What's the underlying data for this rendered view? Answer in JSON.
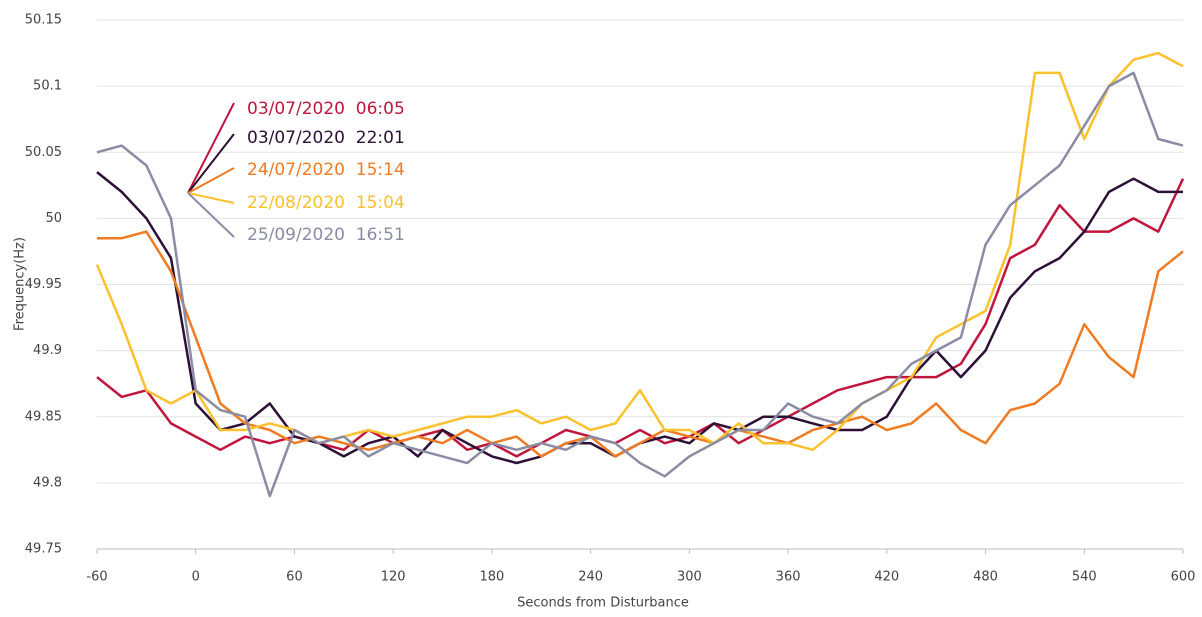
{
  "chart_data": {
    "type": "line",
    "xlabel": "Seconds from Disturbance",
    "ylabel": "Frequency(Hz)",
    "x": [
      -60,
      -45,
      -30,
      -15,
      0,
      15,
      30,
      45,
      60,
      75,
      90,
      105,
      120,
      135,
      150,
      165,
      180,
      195,
      210,
      225,
      240,
      255,
      270,
      285,
      300,
      315,
      330,
      345,
      360,
      375,
      390,
      405,
      420,
      435,
      450,
      465,
      480,
      495,
      510,
      525,
      540,
      555,
      570,
      585,
      600
    ],
    "series": [
      {
        "name": "03/07/2020  06:05",
        "color": "#c0163d",
        "values": [
          49.88,
          49.865,
          49.87,
          49.845,
          49.835,
          49.825,
          49.835,
          49.83,
          49.835,
          49.83,
          49.825,
          49.84,
          49.83,
          49.835,
          49.84,
          49.825,
          49.83,
          49.82,
          49.83,
          49.84,
          49.835,
          49.83,
          49.84,
          49.83,
          49.835,
          49.845,
          49.83,
          49.84,
          49.85,
          49.86,
          49.87,
          49.875,
          49.88,
          49.88,
          49.88,
          49.89,
          49.92,
          49.97,
          49.98,
          50.01,
          49.99,
          49.99,
          50.0,
          49.99,
          50.03
        ]
      },
      {
        "name": "03/07/2020  22:01",
        "color": "#2d1036",
        "values": [
          50.035,
          50.02,
          50.0,
          49.97,
          49.86,
          49.84,
          49.845,
          49.86,
          49.835,
          49.83,
          49.82,
          49.83,
          49.835,
          49.82,
          49.84,
          49.83,
          49.82,
          49.815,
          49.82,
          49.83,
          49.83,
          49.82,
          49.83,
          49.835,
          49.83,
          49.845,
          49.84,
          49.85,
          49.85,
          49.845,
          49.84,
          49.84,
          49.85,
          49.88,
          49.9,
          49.88,
          49.9,
          49.94,
          49.96,
          49.97,
          49.99,
          50.02,
          50.03,
          50.02,
          50.02
        ]
      },
      {
        "name": "24/07/2020  15:14",
        "color": "#ef7b22",
        "values": [
          49.985,
          49.985,
          49.99,
          49.96,
          49.91,
          49.86,
          49.845,
          49.84,
          49.83,
          49.835,
          49.83,
          49.825,
          49.83,
          49.835,
          49.83,
          49.84,
          49.83,
          49.835,
          49.82,
          49.83,
          49.835,
          49.82,
          49.83,
          49.84,
          49.835,
          49.83,
          49.84,
          49.835,
          49.83,
          49.84,
          49.845,
          49.85,
          49.84,
          49.845,
          49.86,
          49.84,
          49.83,
          49.855,
          49.86,
          49.875,
          49.92,
          49.895,
          49.88,
          49.96,
          49.975
        ]
      },
      {
        "name": "22/08/2020  15:04",
        "color": "#fcc12d",
        "values": [
          49.965,
          49.92,
          49.87,
          49.86,
          49.87,
          49.84,
          49.84,
          49.845,
          49.84,
          49.83,
          49.835,
          49.84,
          49.835,
          49.84,
          49.845,
          49.85,
          49.85,
          49.855,
          49.845,
          49.85,
          49.84,
          49.845,
          49.87,
          49.84,
          49.84,
          49.83,
          49.845,
          49.83,
          49.83,
          49.825,
          49.84,
          49.86,
          49.87,
          49.88,
          49.91,
          49.92,
          49.93,
          49.98,
          50.11,
          50.11,
          50.06,
          50.1,
          50.12,
          50.125,
          50.115
        ]
      },
      {
        "name": "25/09/2020  16:51",
        "color": "#8a8ca4",
        "values": [
          50.05,
          50.055,
          50.04,
          50.0,
          49.87,
          49.855,
          49.85,
          49.79,
          49.84,
          49.83,
          49.835,
          49.82,
          49.83,
          49.825,
          49.82,
          49.815,
          49.83,
          49.825,
          49.83,
          49.825,
          49.835,
          49.83,
          49.815,
          49.805,
          49.82,
          49.83,
          49.84,
          49.84,
          49.86,
          49.85,
          49.845,
          49.86,
          49.87,
          49.89,
          49.9,
          49.91,
          49.98,
          50.01,
          50.025,
          50.04,
          50.07,
          50.1,
          50.11,
          50.06,
          50.055
        ]
      }
    ],
    "xlim": [
      -60,
      600
    ],
    "xticks": [
      -60,
      0,
      60,
      120,
      180,
      240,
      300,
      360,
      420,
      480,
      540,
      600
    ],
    "ylim": [
      49.75,
      50.15
    ],
    "yticks": [
      49.75,
      49.8,
      49.85,
      49.9,
      49.95,
      50,
      50.05,
      50.1,
      50.15
    ],
    "grid": true
  }
}
